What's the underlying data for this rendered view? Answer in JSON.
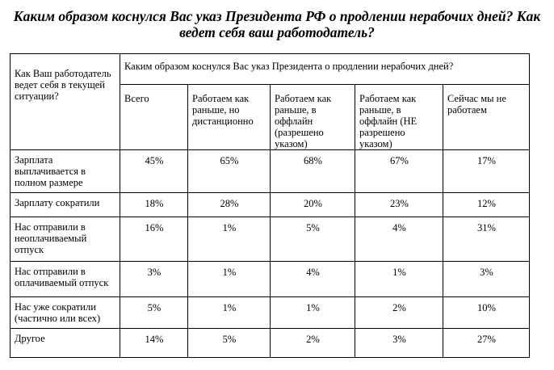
{
  "title": "Каким образом коснулся Вас указ Президента РФ о продлении нерабочих дней? Как ведет себя ваш работодатель?",
  "table": {
    "corner_header": "Как Ваш работодатель ведет себя в текущей ситуации?",
    "group_header": "Каким образом коснулся Вас указ Президента о продлении нерабочих дней?",
    "columns": [
      "Всего",
      "Работаем как раньше, но дистанционно",
      "Работаем как раньше, в оффлайн (разрешено указом)",
      "Работаем как раньше, в оффлайн (НЕ разрешено указом)",
      "Сейчас мы не работаем"
    ],
    "rows": [
      {
        "label": "Зарплата выплачивается в полном размере",
        "values": [
          "45%",
          "65%",
          "68%",
          "67%",
          "17%"
        ]
      },
      {
        "label": "Зарплату сократили",
        "values": [
          "18%",
          "28%",
          "20%",
          "23%",
          "12%"
        ]
      },
      {
        "label": "Нас отправили в неоплачиваемый отпуск",
        "values": [
          "16%",
          "1%",
          "5%",
          "4%",
          "31%"
        ]
      },
      {
        "label": "Нас отправили в оплачиваемый отпуск",
        "values": [
          "3%",
          "1%",
          "4%",
          "1%",
          "3%"
        ]
      },
      {
        "label": "Нас уже сократили (частично или всех)",
        "values": [
          "5%",
          "1%",
          "1%",
          "2%",
          "10%"
        ]
      },
      {
        "label": "Другое",
        "values": [
          "14%",
          "5%",
          "2%",
          "3%",
          "27%"
        ]
      }
    ]
  }
}
